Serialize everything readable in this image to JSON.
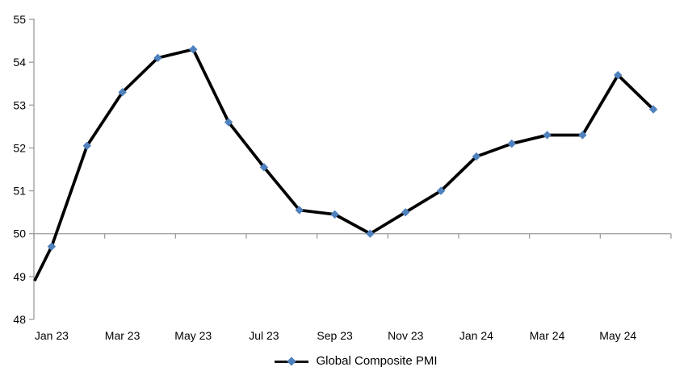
{
  "chart_data": {
    "type": "line",
    "title": "",
    "categories": [
      "Jan 23",
      "Feb 23",
      "Mar 23",
      "Apr 23",
      "May 23",
      "Jun 23",
      "Jul 23",
      "Aug 23",
      "Sep 23",
      "Oct 23",
      "Nov 23",
      "Dec 23",
      "Jan 24",
      "Feb 24",
      "Mar 24",
      "Apr 24",
      "May 24",
      "Jun 24"
    ],
    "series": [
      {
        "name": "Global Composite PMI",
        "values": [
          49.7,
          52.05,
          53.3,
          54.1,
          54.3,
          52.6,
          51.55,
          50.55,
          50.45,
          50.0,
          50.5,
          51.0,
          51.8,
          52.1,
          52.3,
          52.3,
          53.7,
          52.9
        ],
        "edge_start_value": 48.9,
        "line_color": "#000000",
        "marker_shape": "diamond",
        "marker_color": "#4F81BD"
      }
    ],
    "y_axis": {
      "min": 48,
      "max": 55,
      "tick_interval": 1,
      "tick_labels": [
        "48",
        "49",
        "50",
        "51",
        "52",
        "53",
        "54",
        "55"
      ]
    },
    "x_axis": {
      "visible_labels": [
        "Jan 23",
        "Mar 23",
        "May 23",
        "Jul 23",
        "Sep 23",
        "Nov 23",
        "Jan 24",
        "Mar 24",
        "May 24"
      ],
      "label_every": 2,
      "tick_every": 2,
      "crosses_at_value": 50
    },
    "legend": {
      "label": "Global Composite PMI",
      "position": "bottom"
    },
    "colors": {
      "axis": "#9C9C9C",
      "text": "#000000"
    }
  }
}
